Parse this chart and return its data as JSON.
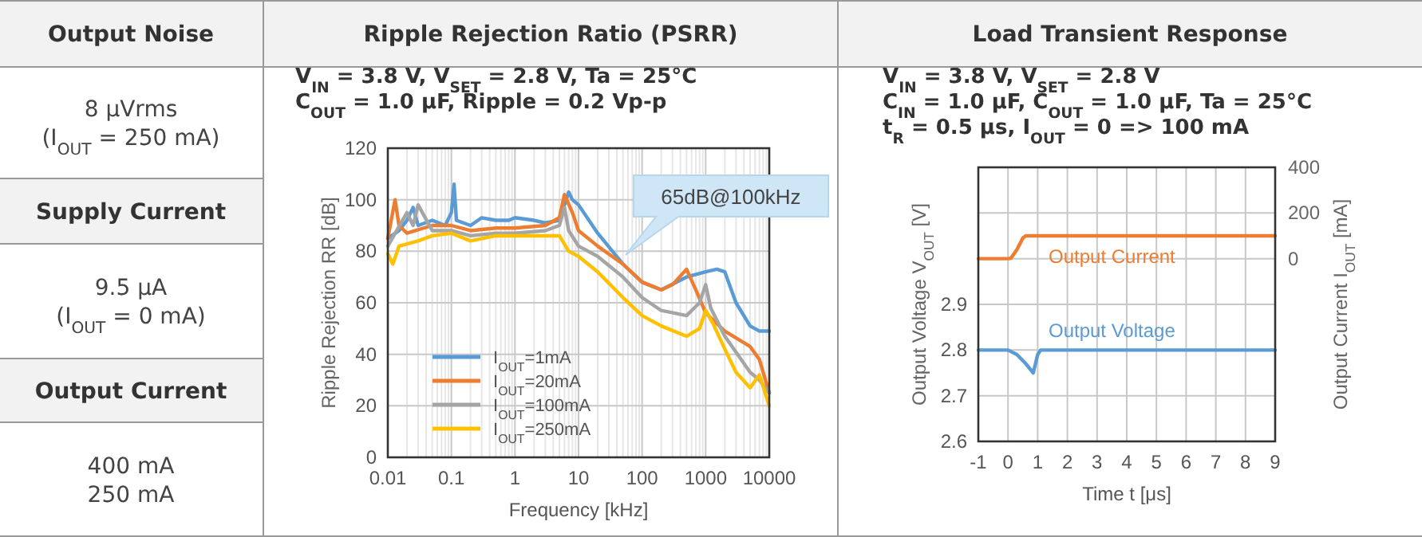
{
  "chart_data": [
    {
      "type": "other",
      "title": "Output Noise",
      "annotations": [
        "8 μVrms",
        "(I$_{OUT}$ = 250 mA)"
      ]
    },
    {
      "type": "other",
      "title": "Supply Current",
      "annotations": [
        "9.5 μA",
        "(I$_{OUT}$ = 0 mA)"
      ]
    },
    {
      "type": "other",
      "title": "Output Current",
      "annotations": [
        "400 mA",
        "250 mA"
      ]
    },
    {
      "type": "line",
      "title": "Ripple Rejection Ratio (PSRR)",
      "subtitle": "V$_{IN}$ = 3.8 V, V$_{SET}$ = 2.8 V, Ta = 25°C\nC$_{OUT}$ = 1.0 μF, Ripple = 0.2 Vp-p",
      "xlabel": "Frequency [kHz]",
      "ylabel": "Ripple Rejection RR [dB]",
      "log": "x",
      "grid": true,
      "legend": "bottom left",
      "xlim": [
        0.01,
        10000
      ],
      "xticks": [
        0.01,
        0.1,
        1,
        10,
        100,
        1000,
        10000
      ],
      "ylim": [
        0,
        120
      ],
      "yticks": [
        0,
        20,
        40,
        60,
        80,
        100,
        120
      ],
      "annotations": [
        "65dB@100kHz"
      ],
      "series": [
        {
          "name": "I$_{OUT}$=1mA",
          "color": "#5b9bd5",
          "x": [
            0.01,
            0.015,
            0.02,
            0.025,
            0.03,
            0.05,
            0.08,
            0.1,
            0.11,
            0.12,
            0.2,
            0.3,
            0.5,
            0.8,
            1,
            2,
            3,
            5,
            7,
            8,
            10,
            20,
            50,
            100,
            200,
            500,
            1000,
            1500,
            2000,
            3000,
            5000,
            7000,
            10000
          ],
          "values": [
            85,
            88,
            92,
            97,
            90,
            92,
            90,
            95,
            106,
            92,
            90,
            93,
            92,
            92,
            93,
            92,
            91,
            92,
            103,
            100,
            98,
            87,
            75,
            68,
            65,
            70,
            72,
            73,
            72,
            60,
            51,
            49,
            49
          ]
        },
        {
          "name": "I$_{OUT}$=20mA",
          "color": "#ed7d31",
          "x": [
            0.01,
            0.013,
            0.015,
            0.02,
            0.05,
            0.1,
            0.2,
            0.5,
            1,
            3,
            5,
            6,
            8,
            10,
            20,
            50,
            100,
            200,
            300,
            500,
            700,
            1000,
            2000,
            5000,
            7000,
            10000
          ],
          "values": [
            85,
            100,
            90,
            87,
            90,
            90,
            88,
            89,
            89,
            90,
            93,
            102,
            95,
            88,
            82,
            75,
            68,
            65,
            67,
            73,
            65,
            56,
            49,
            43,
            38,
            25
          ]
        },
        {
          "name": "I$_{OUT}$=100mA",
          "color": "#a5a5a5",
          "x": [
            0.01,
            0.02,
            0.025,
            0.03,
            0.05,
            0.1,
            0.2,
            0.5,
            1,
            3,
            5,
            6,
            7,
            10,
            20,
            50,
            100,
            200,
            500,
            800,
            1000,
            1200,
            2000,
            5000,
            7000,
            10000
          ],
          "values": [
            82,
            95,
            90,
            98,
            88,
            88,
            86,
            87,
            87,
            88,
            90,
            97,
            88,
            82,
            78,
            70,
            62,
            57,
            55,
            60,
            67,
            58,
            47,
            33,
            30,
            25
          ]
        },
        {
          "name": "I$_{OUT}$=250mA",
          "color": "#ffc000",
          "x": [
            0.01,
            0.012,
            0.015,
            0.03,
            0.05,
            0.1,
            0.2,
            0.5,
            1,
            3,
            5,
            7,
            10,
            20,
            50,
            100,
            200,
            500,
            800,
            1000,
            1300,
            2000,
            3000,
            5000,
            7000,
            10000
          ],
          "values": [
            79,
            75,
            82,
            84,
            86,
            87,
            84,
            86,
            86,
            86,
            86,
            80,
            78,
            72,
            62,
            55,
            51,
            47,
            50,
            57,
            52,
            42,
            33,
            27,
            32,
            20
          ]
        }
      ]
    },
    {
      "type": "line",
      "title": "Load Transient Response",
      "subtitle": "V$_{IN}$ = 3.8 V, V$_{SET}$ = 2.8 V\nC$_{IN}$ = 1.0 μF, C$_{OUT}$ = 1.0 μF, Ta = 25°C\nt$_{R}$ = 0.5 μs, I$_{OUT}$ = 0 => 100 mA",
      "xlabel": "Time t [μs]",
      "ylabel": "Output Voltage V$_{OUT}$ [V]",
      "y2label": "Output Current I$_{OUT}$ [mA]",
      "grid": true,
      "legend": false,
      "xlim": [
        -1,
        9
      ],
      "xticks": [
        -1,
        0,
        1,
        2,
        3,
        4,
        5,
        6,
        7,
        8,
        9
      ],
      "ylim": [
        2.6,
        3.2
      ],
      "yticks": [
        2.6,
        2.7,
        2.8,
        2.9,
        {
          "value": 3.0,
          "label": null
        },
        {
          "value": 3.1,
          "label": null
        }
      ],
      "y2lim": [
        -800,
        400
      ],
      "y2ticks": [
        0,
        200,
        400
      ],
      "series": [
        {
          "name": "Output Current",
          "color": "#ed7d31",
          "axis": "y2",
          "x": [
            -1,
            0,
            0.1,
            0.3,
            0.5,
            0.6,
            9
          ],
          "values": [
            0,
            0,
            2,
            40,
            90,
            100,
            100
          ]
        },
        {
          "name": "Output Voltage",
          "color": "#5b9bd5",
          "x": [
            -1,
            0,
            0.3,
            0.6,
            0.85,
            1.0,
            1.1,
            9
          ],
          "values": [
            2.8,
            2.8,
            2.79,
            2.77,
            2.75,
            2.79,
            2.8,
            2.8
          ]
        }
      ]
    }
  ]
}
